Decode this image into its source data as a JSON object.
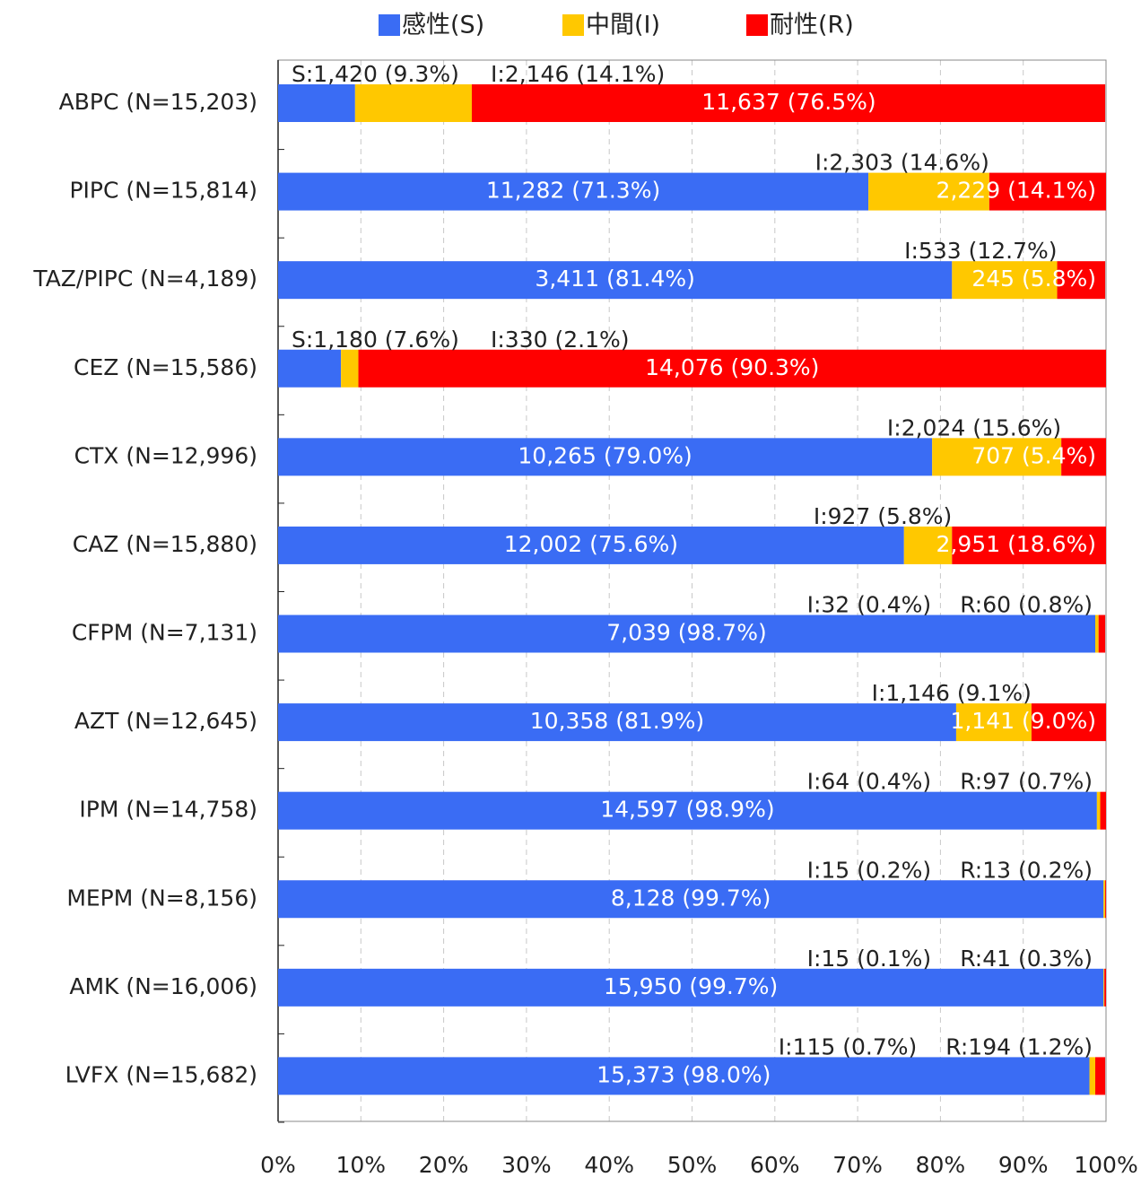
{
  "chart_data": {
    "type": "bar",
    "orientation": "horizontal",
    "stacked": true,
    "categories": [
      "ABPC (N=15,203)",
      "PIPC (N=15,814)",
      "TAZ/PIPC (N=4,189)",
      "CEZ (N=15,586)",
      "CTX (N=12,996)",
      "CAZ (N=15,880)",
      "CFPM (N=7,131)",
      "AZT (N=12,645)",
      "IPM (N=14,758)",
      "MEPM (N=8,156)",
      "AMK (N=16,006)",
      "LVFX (N=15,682)"
    ],
    "series": [
      {
        "name": "感性(S)",
        "color": "#3a6cf4",
        "values": [
          9.3,
          71.3,
          81.4,
          7.6,
          79.0,
          75.6,
          98.7,
          81.9,
          98.9,
          99.7,
          99.7,
          98.0
        ],
        "value_labels": [
          "S:1,420 (9.3%)",
          "11,282 (71.3%)",
          "3,411 (81.4%)",
          "S:1,180 (7.6%)",
          "10,265 (79.0%)",
          "12,002 (75.6%)",
          "7,039 (98.7%)",
          "10,358 (81.9%)",
          "14,597 (98.9%)",
          "8,128 (99.7%)",
          "15,950 (99.7%)",
          "15,373 (98.0%)"
        ]
      },
      {
        "name": "中間(I)",
        "color": "#ffc800",
        "values": [
          14.1,
          14.6,
          12.7,
          2.1,
          15.6,
          5.8,
          0.4,
          9.1,
          0.4,
          0.2,
          0.1,
          0.7
        ],
        "value_labels": [
          "I:2,146 (14.1%)",
          "I:2,303 (14.6%)",
          "I:533 (12.7%)",
          "I:330 (2.1%)",
          "I:2,024 (15.6%)",
          "I:927 (5.8%)",
          "I:32 (0.4%)",
          "I:1,146 (9.1%)",
          "I:64 (0.4%)",
          "I:15 (0.2%)",
          "I:15 (0.1%)",
          "I:115 (0.7%)"
        ]
      },
      {
        "name": "耐性(R)",
        "color": "#ff0000",
        "values": [
          76.5,
          14.1,
          5.8,
          90.3,
          5.4,
          18.6,
          0.8,
          9.0,
          0.7,
          0.2,
          0.3,
          1.2
        ],
        "value_labels": [
          "11,637 (76.5%)",
          "2,229 (14.1%)",
          "245 (5.8%)",
          "14,076 (90.3%)",
          "707 (5.4%)",
          "2,951 (18.6%)",
          "R:60 (0.8%)",
          "1,141 (9.0%)",
          "R:97 (0.7%)",
          "R:13 (0.2%)",
          "R:41 (0.3%)",
          "R:194 (1.2%)"
        ]
      }
    ],
    "xlim": [
      0,
      100
    ],
    "xticks": [
      {
        "value": 0,
        "label": "0%"
      },
      {
        "value": 10,
        "label": "10%"
      },
      {
        "value": 20,
        "label": "20%"
      },
      {
        "value": 30,
        "label": "30%"
      },
      {
        "value": 40,
        "label": "40%"
      },
      {
        "value": 50,
        "label": "50%"
      },
      {
        "value": 60,
        "label": "60%"
      },
      {
        "value": 70,
        "label": "70%"
      },
      {
        "value": 80,
        "label": "80%"
      },
      {
        "value": 90,
        "label": "90%"
      },
      {
        "value": 100,
        "label": "100%"
      }
    ],
    "grid": true,
    "legend": "top"
  }
}
